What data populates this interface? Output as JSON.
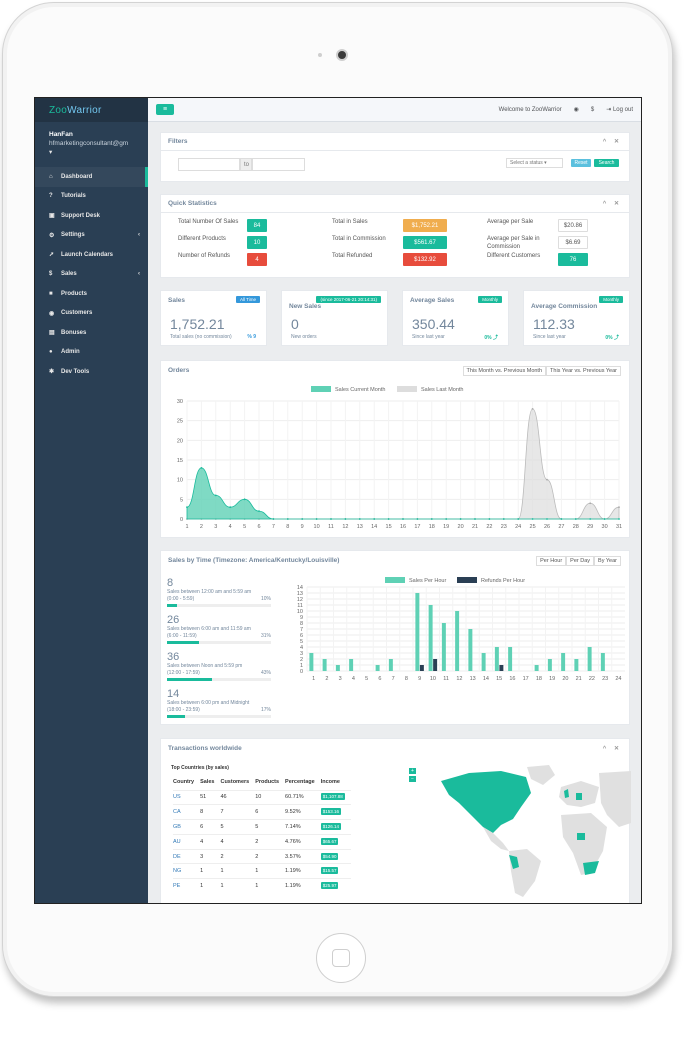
{
  "app": {
    "logo_a": "Zoo",
    "logo_b": "Warrior"
  },
  "user": {
    "name": "HanFan",
    "email": "hfmarketingconsultant@gm",
    "caret": "▾"
  },
  "sidebar": {
    "items": [
      {
        "label": "Dashboard",
        "icon": "home-icon",
        "glyph": "⌂"
      },
      {
        "label": "Tutorials",
        "icon": "help-icon",
        "glyph": "?"
      },
      {
        "label": "Support Desk",
        "icon": "support-icon",
        "glyph": "▣"
      },
      {
        "label": "Settings",
        "icon": "gear-icon",
        "glyph": "⚙",
        "chev": "‹"
      },
      {
        "label": "Launch Calendars",
        "icon": "rocket-icon",
        "glyph": "➚"
      },
      {
        "label": "Sales",
        "icon": "dollar-icon",
        "glyph": "$",
        "chev": "‹"
      },
      {
        "label": "Products",
        "icon": "cube-icon",
        "glyph": "■"
      },
      {
        "label": "Customers",
        "icon": "users-icon",
        "glyph": "◉"
      },
      {
        "label": "Bonuses",
        "icon": "gift-icon",
        "glyph": "▤"
      },
      {
        "label": "Admin",
        "icon": "admin-icon",
        "glyph": "●"
      },
      {
        "label": "Dev Tools",
        "icon": "tools-icon",
        "glyph": "✱"
      }
    ]
  },
  "topbar": {
    "menu_glyph": "≡",
    "welcome": "Welcome to ZooWarrior",
    "eye": "◉",
    "dollar": "$",
    "logout_glyph": "⇥",
    "logout": "Log out"
  },
  "panel_tools": "^ ✕",
  "filters": {
    "title": "Filters",
    "to": "to",
    "status": "Select a status ▾",
    "reset": "Reset",
    "search": "Search"
  },
  "quick": {
    "title": "Quick Statistics",
    "c1": [
      {
        "label": "Total Number Of Sales",
        "value": "84"
      },
      {
        "label": "Different Products",
        "value": "10"
      },
      {
        "label": "Number of Refunds",
        "value": "4"
      }
    ],
    "c2": [
      {
        "label": "Total in Sales",
        "value": "$1,752.21"
      },
      {
        "label": "Total in Commission",
        "value": "$561.67"
      },
      {
        "label": "Total Refunded",
        "value": "$132.92"
      }
    ],
    "c3": [
      {
        "label": "Average per Sale",
        "value": "$20.86"
      },
      {
        "label": "Average per Sale in Commission",
        "value": "$6.69"
      },
      {
        "label": "Different Customers",
        "value": "76"
      }
    ]
  },
  "cards": [
    {
      "title": "Sales",
      "badge": "All Time",
      "value": "1,752.21",
      "sub": "Total sales (no commission)",
      "pct": "% 9",
      "badge_color": "#3498db",
      "pct_color": "#3498db"
    },
    {
      "title": "New Sales",
      "badge": "(since 2017-06-21 20:14:31)",
      "value": "0",
      "sub": "New orders",
      "pct": "",
      "badge_color": "#1abb9c",
      "pct_color": "#1abb9c"
    },
    {
      "title": "Average Sales",
      "badge": "Monthly",
      "value": "350.44",
      "sub": "Since last year",
      "pct": "0% ⤴",
      "badge_color": "#1abb9c",
      "pct_color": "#1abb9c"
    },
    {
      "title": "Average Commission",
      "badge": "Monthly",
      "value": "112.33",
      "sub": "Since last year",
      "pct": "0% ⤴",
      "badge_color": "#1abb9c",
      "pct_color": "#1abb9c"
    }
  ],
  "orders": {
    "title": "Orders",
    "tab1": "This Month vs. Previous Month",
    "tab2": "This Year vs. Previous Year"
  },
  "sales_time": {
    "title": "Sales by Time (Timezone: America/Kentucky/Louisville)",
    "tabs": [
      "Per Hour",
      "Per Day",
      "By Year"
    ],
    "stats": [
      {
        "num": "8",
        "line1": "Sales between 12:00 am and 5:59 am",
        "line2": "(0:00 - 5:59)",
        "pct": "10%",
        "frac": 0.1
      },
      {
        "num": "26",
        "line1": "Sales between 6:00 am and 11:59 am",
        "line2": "(6:00 - 11:59)",
        "pct": "31%",
        "frac": 0.31
      },
      {
        "num": "36",
        "line1": "Sales between Noon and 5:59 pm",
        "line2": "(12:00 - 17:59)",
        "pct": "43%",
        "frac": 0.43
      },
      {
        "num": "14",
        "line1": "Sales between 6:00 pm and Midnight",
        "line2": "(18:00 - 23:59)",
        "pct": "17%",
        "frac": 0.17
      }
    ]
  },
  "transactions": {
    "title": "Transactions worldwide",
    "sub": "Top Countries (by sales)",
    "headers": [
      "Country",
      "Sales",
      "Customers",
      "Products",
      "Percentage",
      "Income"
    ],
    "rows": [
      [
        "US",
        "51",
        "46",
        "10",
        "60.71%",
        "$1,107.88"
      ],
      [
        "CA",
        "8",
        "7",
        "6",
        "9.52%",
        "$153.16"
      ],
      [
        "GB",
        "6",
        "5",
        "5",
        "7.14%",
        "$126.14"
      ],
      [
        "AU",
        "4",
        "4",
        "2",
        "4.76%",
        "$65.67"
      ],
      [
        "DE",
        "3",
        "2",
        "2",
        "3.57%",
        "$54.90"
      ],
      [
        "NG",
        "1",
        "1",
        "1",
        "1.19%",
        "$15.57"
      ],
      [
        "PE",
        "1",
        "1",
        "1",
        "1.19%",
        "$25.97"
      ]
    ],
    "zoom_in": "+",
    "zoom_out": "−"
  },
  "chart_data": [
    {
      "type": "area",
      "title": "",
      "legend": [
        "Sales Current Month",
        "Sales Last Month"
      ],
      "x": [
        "1",
        "2",
        "3",
        "4",
        "5",
        "6",
        "7",
        "8",
        "9",
        "10",
        "11",
        "12",
        "13",
        "14",
        "15",
        "16",
        "17",
        "18",
        "19",
        "20",
        "21",
        "22",
        "23",
        "24",
        "25",
        "26",
        "27",
        "28",
        "29",
        "30",
        "31"
      ],
      "ylim": [
        0,
        30
      ],
      "yticks": [
        0,
        5,
        10,
        15,
        20,
        25,
        30
      ],
      "series": [
        {
          "name": "Sales Current Month",
          "color": "#5fd1b5",
          "values": [
            3,
            13,
            6,
            3,
            5,
            2,
            0,
            0,
            0,
            0,
            0,
            0,
            0,
            0,
            0,
            0,
            0,
            0,
            0,
            0,
            0,
            0,
            0,
            0,
            0,
            0,
            0,
            0,
            0,
            0,
            0
          ]
        },
        {
          "name": "Sales Last Month",
          "color": "#dddddd",
          "values": [
            0,
            0,
            0,
            0,
            0,
            0,
            0,
            0,
            0,
            0,
            0,
            0,
            0,
            0,
            0,
            0,
            0,
            0,
            0,
            0,
            0,
            0,
            0,
            0,
            28,
            10,
            0,
            0,
            4,
            0,
            3
          ]
        }
      ]
    },
    {
      "type": "bar",
      "title": "",
      "legend": [
        "Sales Per Hour",
        "Refunds Per Hour"
      ],
      "categories": [
        "1",
        "2",
        "3",
        "4",
        "5",
        "6",
        "7",
        "8",
        "9",
        "10",
        "11",
        "12",
        "13",
        "14",
        "15",
        "16",
        "17",
        "18",
        "19",
        "20",
        "21",
        "22",
        "23",
        "24"
      ],
      "ylim": [
        0,
        14
      ],
      "yticks": [
        0,
        1,
        2,
        3,
        4,
        5,
        6,
        7,
        8,
        9,
        10,
        11,
        12,
        13,
        14
      ],
      "series": [
        {
          "name": "Sales Per Hour",
          "color": "#5fd1b5",
          "values": [
            3,
            2,
            1,
            2,
            0,
            1,
            2,
            0,
            13,
            11,
            8,
            10,
            7,
            3,
            4,
            4,
            0,
            1,
            2,
            3,
            2,
            4,
            3,
            0
          ]
        },
        {
          "name": "Refunds Per Hour",
          "color": "#2a3f54",
          "values": [
            0,
            0,
            0,
            0,
            0,
            0,
            0,
            0,
            1,
            2,
            0,
            0,
            0,
            0,
            1,
            0,
            0,
            0,
            0,
            0,
            0,
            0,
            0,
            0
          ]
        }
      ]
    }
  ]
}
